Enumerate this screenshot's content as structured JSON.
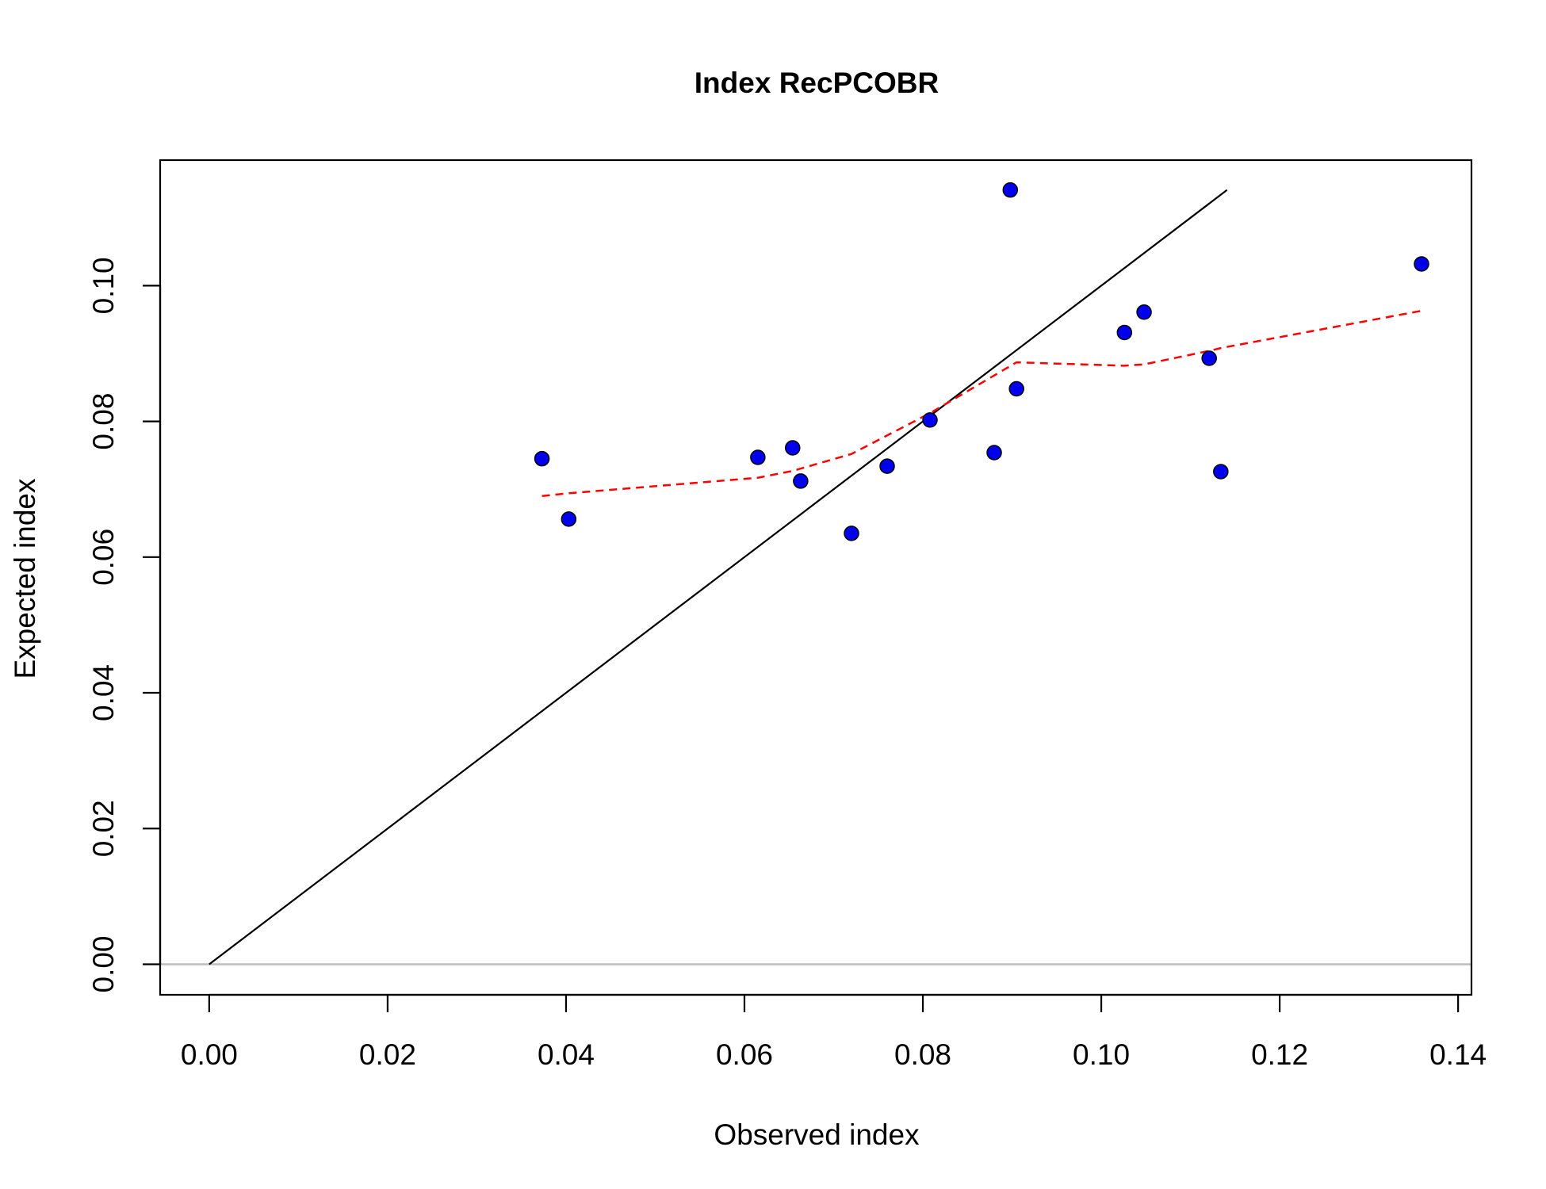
{
  "chart_data": {
    "type": "scatter",
    "title": "Index RecPCOBR",
    "xlabel": "Observed index",
    "ylabel": "Expected index",
    "xlim": [
      -0.0055,
      0.1415
    ],
    "ylim": [
      -0.0045,
      0.1185
    ],
    "x_ticks": [
      0.0,
      0.02,
      0.04,
      0.06,
      0.08,
      0.1,
      0.12,
      0.14
    ],
    "x_tick_labels": [
      "0.00",
      "0.02",
      "0.04",
      "0.06",
      "0.08",
      "0.10",
      "0.12",
      "0.14"
    ],
    "y_ticks": [
      0.0,
      0.02,
      0.04,
      0.06,
      0.08,
      0.1
    ],
    "y_tick_labels": [
      "0.00",
      "0.02",
      "0.04",
      "0.06",
      "0.08",
      "0.10"
    ],
    "grid": false,
    "points": {
      "x": [
        0.0373,
        0.0403,
        0.0615,
        0.0654,
        0.0663,
        0.072,
        0.076,
        0.0808,
        0.088,
        0.0898,
        0.0905,
        0.1026,
        0.1048,
        0.1121,
        0.1134,
        0.1359
      ],
      "y": [
        0.0745,
        0.0656,
        0.0747,
        0.0761,
        0.0712,
        0.0635,
        0.0734,
        0.0802,
        0.0754,
        0.1141,
        0.0848,
        0.0931,
        0.0961,
        0.0893,
        0.0726,
        0.1032
      ],
      "color": "#0000ee"
    },
    "one_to_one_line": {
      "x": [
        0.0,
        0.1141
      ],
      "y": [
        0.0,
        0.1141
      ],
      "color": "#000000"
    },
    "smoother": {
      "x": [
        0.0373,
        0.0403,
        0.0615,
        0.0654,
        0.072,
        0.0808,
        0.0905,
        0.1026,
        0.1048,
        0.1121,
        0.1134,
        0.1359
      ],
      "y": [
        0.069,
        0.0694,
        0.0717,
        0.0727,
        0.0752,
        0.0812,
        0.0887,
        0.0882,
        0.0884,
        0.0904,
        0.0908,
        0.0963
      ],
      "color": "#ff0000",
      "style": "dashed"
    },
    "zero_line": {
      "y": 0.0,
      "color": "#bebebe"
    }
  }
}
